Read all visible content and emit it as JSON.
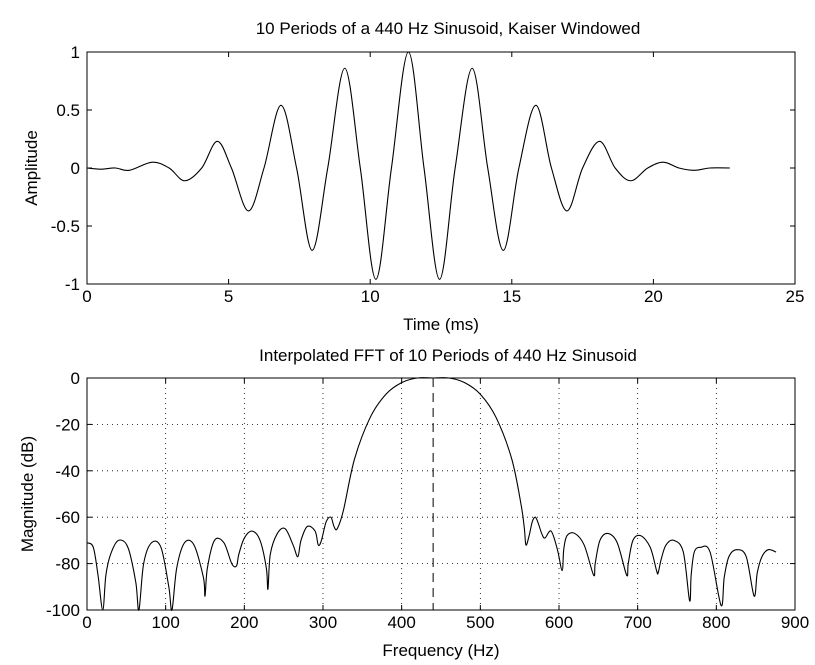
{
  "chart_data": [
    {
      "type": "line",
      "title": "10 Periods of a 440 Hz Sinusoid, Kaiser Windowed",
      "xlabel": "Time (ms)",
      "ylabel": "Amplitude",
      "xlim": [
        0,
        25
      ],
      "ylim": [
        -1,
        1
      ],
      "xticks": [
        0,
        5,
        10,
        15,
        20,
        25
      ],
      "yticks": [
        -1,
        -0.5,
        0,
        0.5,
        1
      ],
      "xtick_labels": [
        "0",
        "5",
        "10",
        "15",
        "20",
        "25"
      ],
      "ytick_labels": [
        "-1",
        "-0.5",
        "0",
        "0.5",
        "1"
      ],
      "grid": false,
      "series": [
        {
          "x": [
            0.0,
            0.5,
            1.0,
            1.5,
            2.3,
            2.9,
            3.45,
            4.05,
            4.6,
            5.1,
            5.7,
            6.25,
            6.85,
            7.4,
            7.95,
            8.5,
            9.1,
            9.65,
            10.2,
            10.75,
            11.35,
            11.9,
            12.45,
            13.0,
            13.6,
            14.15,
            14.7,
            15.25,
            15.85,
            16.4,
            16.95,
            17.5,
            18.1,
            18.65,
            19.2,
            19.8,
            20.35,
            20.9,
            21.45,
            22.0,
            22.7
          ],
          "y": [
            0.0,
            -0.01,
            0.0,
            -0.02,
            0.05,
            0.0,
            -0.11,
            0.0,
            0.23,
            0.0,
            -0.37,
            0.0,
            0.54,
            0.0,
            -0.71,
            0.0,
            0.86,
            0.0,
            -0.96,
            0.0,
            1.0,
            0.0,
            -0.96,
            0.0,
            0.86,
            0.0,
            -0.71,
            0.0,
            0.54,
            0.0,
            -0.37,
            0.0,
            0.23,
            0.0,
            -0.11,
            0.0,
            0.05,
            0.0,
            -0.02,
            0.0,
            0.0
          ]
        }
      ]
    },
    {
      "type": "line",
      "title": "Interpolated FFT of 10 Periods of 440 Hz Sinusoid",
      "xlabel": "Frequency (Hz)",
      "ylabel": "Magnitude (dB)",
      "xlim": [
        0,
        900
      ],
      "ylim": [
        -100,
        0
      ],
      "xticks": [
        0,
        100,
        200,
        300,
        400,
        500,
        600,
        700,
        800,
        900
      ],
      "yticks": [
        -100,
        -80,
        -60,
        -40,
        -20,
        0
      ],
      "xtick_labels": [
        "0",
        "100",
        "200",
        "300",
        "400",
        "500",
        "600",
        "700",
        "800",
        "900"
      ],
      "ytick_labels": [
        "-100",
        "-80",
        "-60",
        "-40",
        "-20",
        "0"
      ],
      "grid": true,
      "reference_line_x": 440,
      "series": [
        {
          "x": [
            0,
            8,
            14,
            20,
            24,
            30,
            40,
            52,
            62,
            66,
            72,
            82,
            94,
            104,
            108,
            114,
            124,
            136,
            148,
            150,
            153,
            162,
            174,
            184,
            190,
            193,
            200,
            210,
            220,
            228,
            230,
            233,
            242,
            252,
            262,
            268,
            272,
            280,
            290,
            294,
            298,
            304,
            310,
            314,
            318,
            326,
            340,
            360,
            380,
            400,
            420,
            440,
            460,
            480,
            500,
            520,
            540,
            552,
            556,
            558,
            562,
            566,
            570,
            574,
            578,
            582,
            590,
            598,
            604,
            606,
            610,
            620,
            632,
            644,
            646,
            652,
            662,
            674,
            686,
            688,
            694,
            704,
            716,
            724,
            726,
            730,
            736,
            746,
            758,
            766,
            768,
            772,
            780,
            792,
            806,
            810,
            816,
            826,
            838,
            848,
            852,
            858,
            866,
            876
          ],
          "y": [
            -71,
            -73,
            -85,
            -100,
            -85,
            -76,
            -70,
            -73,
            -88,
            -100,
            -80,
            -71,
            -73,
            -90,
            -100,
            -82,
            -71,
            -72,
            -86,
            -94,
            -82,
            -70,
            -71,
            -80,
            -81,
            -76,
            -69,
            -66,
            -70,
            -82,
            -91,
            -76,
            -67,
            -65,
            -72,
            -77,
            -70,
            -64,
            -66,
            -72,
            -70,
            -62,
            -60,
            -64,
            -65,
            -57,
            -35,
            -17,
            -7,
            -2,
            0,
            0,
            0,
            -2,
            -7,
            -17,
            -35,
            -55,
            -65,
            -72,
            -68,
            -62,
            -60,
            -63,
            -67,
            -69,
            -66,
            -74,
            -83,
            -74,
            -68,
            -67,
            -72,
            -85,
            -80,
            -70,
            -67,
            -71,
            -85,
            -80,
            -70,
            -68,
            -73,
            -83,
            -84,
            -78,
            -72,
            -70,
            -75,
            -96,
            -85,
            -75,
            -73,
            -75,
            -98,
            -86,
            -77,
            -74,
            -77,
            -94,
            -84,
            -77,
            -74,
            -75
          ]
        }
      ]
    }
  ]
}
